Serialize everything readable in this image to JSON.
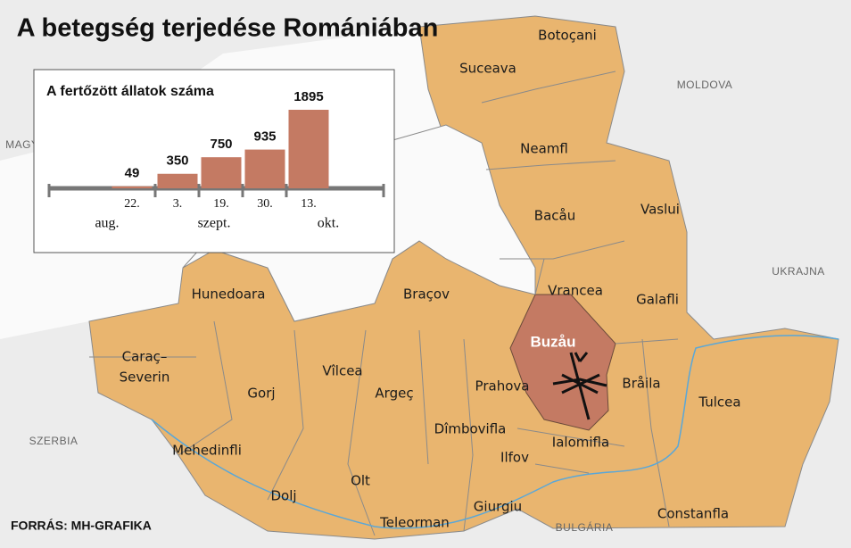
{
  "title": "A betegség terjedése Romániában",
  "source": "FORRÁS: MH-GRAFIKA",
  "countries": [
    "MOLDOVA",
    "MAGYARORSZÁG",
    "UKRAJNA",
    "SZERBIA",
    "BULGÁRIA"
  ],
  "counties": [
    "Botoçani",
    "Suceava",
    "Neamfl",
    "Bacåu",
    "Vaslui",
    "Vrancea",
    "Galafli",
    "Hunedoara",
    "Braçov",
    "Caraç–",
    "Severin",
    "Gorj",
    "Vîlcea",
    "Argeç",
    "Prahova",
    "Bråila",
    "Tulcea",
    "Mehedinfli",
    "Dîmbovifla",
    "Ilfov",
    "Ialomifla",
    "Dolj",
    "Olt",
    "Teleorman",
    "Giurgiu",
    "Constanfla"
  ],
  "highlighted_county": "Buzåu",
  "chart_data": {
    "type": "bar",
    "title": "A fertőzött állatok száma",
    "categories": [
      "22.",
      "3.",
      "19.",
      "30.",
      "13."
    ],
    "values": [
      49,
      350,
      750,
      935,
      1895
    ],
    "months": [
      "aug.",
      "szept.",
      "okt."
    ],
    "color": "#c47a63"
  }
}
